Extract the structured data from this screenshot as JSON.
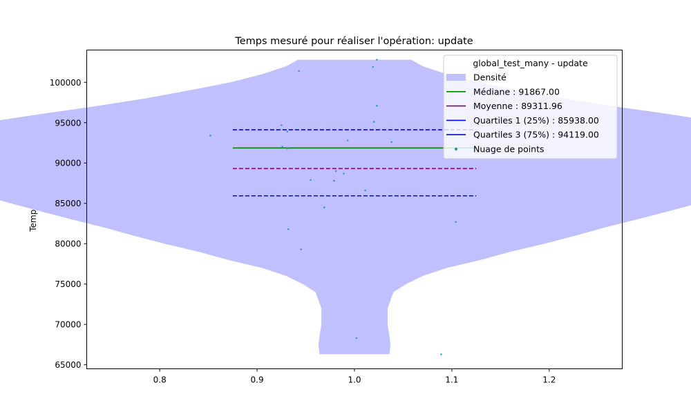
{
  "chart_data": {
    "type": "violin",
    "title": "Temps mesuré pour réaliser l'opération: update",
    "xlabel": "",
    "ylabel": "Temps (µs)",
    "xlim": [
      0.725,
      1.275
    ],
    "ylim": [
      64500,
      104000
    ],
    "x_ticks": [
      0.8,
      0.9,
      1.0,
      1.1,
      1.2
    ],
    "x_tick_labels": [
      "0.8",
      "0.9",
      "1.0",
      "1.1",
      "1.2"
    ],
    "y_ticks": [
      65000,
      70000,
      75000,
      80000,
      85000,
      90000,
      95000,
      100000
    ],
    "y_tick_labels": [
      "65000",
      "70000",
      "75000",
      "80000",
      "85000",
      "90000",
      "95000",
      "100000"
    ],
    "violin": {
      "position": 1.0,
      "color": "#c0c0ff",
      "profile": [
        [
          66300,
          0.036
        ],
        [
          67500,
          0.037
        ],
        [
          68500,
          0.036
        ],
        [
          70000,
          0.034
        ],
        [
          72000,
          0.034
        ],
        [
          74000,
          0.04
        ],
        [
          75000,
          0.053
        ],
        [
          76000,
          0.07
        ],
        [
          77000,
          0.095
        ],
        [
          78000,
          0.13
        ],
        [
          79000,
          0.16
        ],
        [
          80000,
          0.195
        ],
        [
          81000,
          0.227
        ],
        [
          82000,
          0.257
        ],
        [
          83000,
          0.29
        ],
        [
          84000,
          0.322
        ],
        [
          85000,
          0.353
        ],
        [
          86000,
          0.383
        ],
        [
          87000,
          0.412
        ],
        [
          88000,
          0.438
        ],
        [
          89000,
          0.458
        ],
        [
          90000,
          0.47
        ],
        [
          90800,
          0.475
        ],
        [
          91600,
          0.475
        ],
        [
          92300,
          0.468
        ],
        [
          93000,
          0.455
        ],
        [
          93700,
          0.438
        ],
        [
          94500,
          0.405
        ],
        [
          95300,
          0.365
        ],
        [
          96200,
          0.315
        ],
        [
          97000,
          0.268
        ],
        [
          98000,
          0.215
        ],
        [
          99000,
          0.17
        ],
        [
          100000,
          0.127
        ],
        [
          101000,
          0.095
        ],
        [
          102000,
          0.07
        ],
        [
          102800,
          0.058
        ]
      ]
    },
    "lines": [
      {
        "name": "Médiane : 91867.00",
        "value": 91867.0,
        "color": "#008000",
        "style": "solid"
      },
      {
        "name": "Moyenne : 89311.96",
        "value": 89311.96,
        "color": "#800080",
        "style": "dashed"
      },
      {
        "name": "Quartiles 1 (25%) : 85938.00",
        "value": 85938.0,
        "color": "#0000ff",
        "style": "dashed"
      },
      {
        "name": "Quartiles 3 (75%) : 94119.00",
        "value": 94119.0,
        "color": "#0000ff",
        "style": "dashed"
      }
    ],
    "line_x_range": [
      0.875,
      1.125
    ],
    "points": [
      [
        0.852,
        93400
      ],
      [
        0.925,
        94700
      ],
      [
        0.931,
        93900
      ],
      [
        0.926,
        92000
      ],
      [
        0.931,
        91800
      ],
      [
        0.943,
        101400
      ],
      [
        0.955,
        87900
      ],
      [
        0.979,
        87800
      ],
      [
        0.981,
        89000
      ],
      [
        0.989,
        88700
      ],
      [
        0.993,
        92800
      ],
      [
        1.011,
        86600
      ],
      [
        0.969,
        84500
      ],
      [
        0.932,
        81800
      ],
      [
        0.945,
        79300
      ],
      [
        1.002,
        68300
      ],
      [
        1.019,
        101900
      ],
      [
        1.023,
        102800
      ],
      [
        1.023,
        97100
      ],
      [
        1.02,
        95100
      ],
      [
        1.038,
        92600
      ],
      [
        1.104,
        82700
      ],
      [
        1.089,
        66300
      ]
    ],
    "points_color": "#1f8fcf",
    "legend": {
      "title": "global_test_many - update",
      "position": "top-right",
      "entries": [
        {
          "label": "Densité",
          "kind": "patch",
          "color": "#c0c0ff"
        },
        {
          "label": "Médiane : 91867.00",
          "kind": "line",
          "color": "#008000",
          "style": "solid"
        },
        {
          "label": "Moyenne : 89311.96",
          "kind": "line",
          "color": "#800080",
          "style": "solid"
        },
        {
          "label": "Quartiles 1 (25%) : 85938.00",
          "kind": "line",
          "color": "#0000ff",
          "style": "solid"
        },
        {
          "label": "Quartiles 3 (75%) : 94119.00",
          "kind": "line",
          "color": "#0000ff",
          "style": "solid"
        },
        {
          "label": "Nuage de points",
          "kind": "marker",
          "color": "#1a9c8c"
        }
      ]
    },
    "grid": false
  }
}
